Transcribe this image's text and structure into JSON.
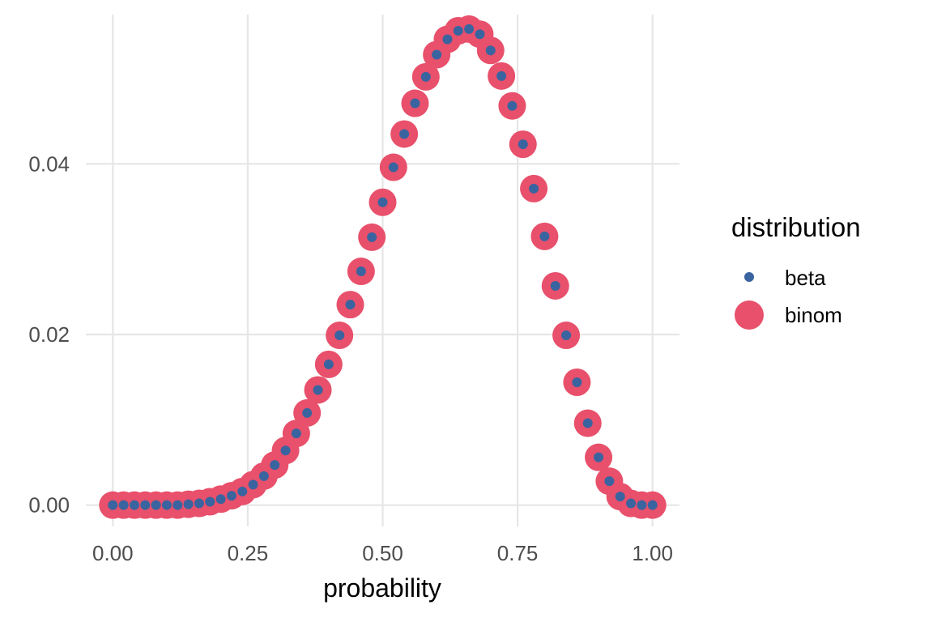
{
  "chart_data": {
    "type": "scatter",
    "title": "",
    "xlabel": "probability",
    "ylabel": "",
    "xlim": [
      -0.05,
      1.05
    ],
    "ylim": [
      -0.0025,
      0.0575
    ],
    "x_ticks": [
      0,
      0.25,
      0.5,
      0.75,
      1
    ],
    "x_tick_labels": [
      "0.00",
      "0.25",
      "0.50",
      "0.75",
      "1.00"
    ],
    "y_ticks": [
      0,
      0.02,
      0.04
    ],
    "y_tick_labels": [
      "0.00",
      "0.02",
      "0.04"
    ],
    "grid": true,
    "legend": {
      "title": "distribution",
      "placement": "right",
      "entries": [
        "beta",
        "binom"
      ]
    },
    "x": [
      0,
      0.02,
      0.04,
      0.06,
      0.08,
      0.1,
      0.12,
      0.14,
      0.16,
      0.18,
      0.2,
      0.22,
      0.24,
      0.26,
      0.28,
      0.3,
      0.32,
      0.34,
      0.36,
      0.38,
      0.4,
      0.42,
      0.44,
      0.46,
      0.48,
      0.5,
      0.52,
      0.54,
      0.56,
      0.58,
      0.6,
      0.62,
      0.64,
      0.66,
      0.68,
      0.7,
      0.72,
      0.74,
      0.76,
      0.78,
      0.8,
      0.82,
      0.84,
      0.86,
      0.88,
      0.9,
      0.92,
      0.94,
      0.96,
      0.98,
      1
    ],
    "series": [
      {
        "name": "binom",
        "color": "#e8506b",
        "values": [
          0,
          0,
          0,
          0,
          0,
          0,
          0,
          0.0001,
          0.0002,
          0.0004,
          0.0007,
          0.0011,
          0.0016,
          0.0024,
          0.0034,
          0.0047,
          0.0064,
          0.0084,
          0.0108,
          0.0135,
          0.0165,
          0.0199,
          0.0235,
          0.0274,
          0.0314,
          0.0355,
          0.0396,
          0.0435,
          0.0471,
          0.0502,
          0.0528,
          0.0546,
          0.0556,
          0.0558,
          0.0552,
          0.0533,
          0.0503,
          0.0468,
          0.0423,
          0.0371,
          0.0315,
          0.0257,
          0.0199,
          0.0144,
          0.0096,
          0.0056,
          0.0028,
          0.001,
          0.0002,
          0,
          0
        ]
      },
      {
        "name": "beta",
        "color": "#3a64a0",
        "values": [
          0,
          0,
          0,
          0,
          0,
          0,
          0,
          0.0001,
          0.0002,
          0.0004,
          0.0007,
          0.0011,
          0.0016,
          0.0024,
          0.0034,
          0.0047,
          0.0064,
          0.0084,
          0.0108,
          0.0135,
          0.0165,
          0.0199,
          0.0235,
          0.0274,
          0.0314,
          0.0355,
          0.0396,
          0.0435,
          0.0471,
          0.0502,
          0.0528,
          0.0546,
          0.0556,
          0.0558,
          0.0552,
          0.0533,
          0.0503,
          0.0468,
          0.0423,
          0.0371,
          0.0315,
          0.0257,
          0.0199,
          0.0144,
          0.0096,
          0.0056,
          0.0028,
          0.001,
          0.0002,
          0,
          0
        ]
      }
    ]
  }
}
